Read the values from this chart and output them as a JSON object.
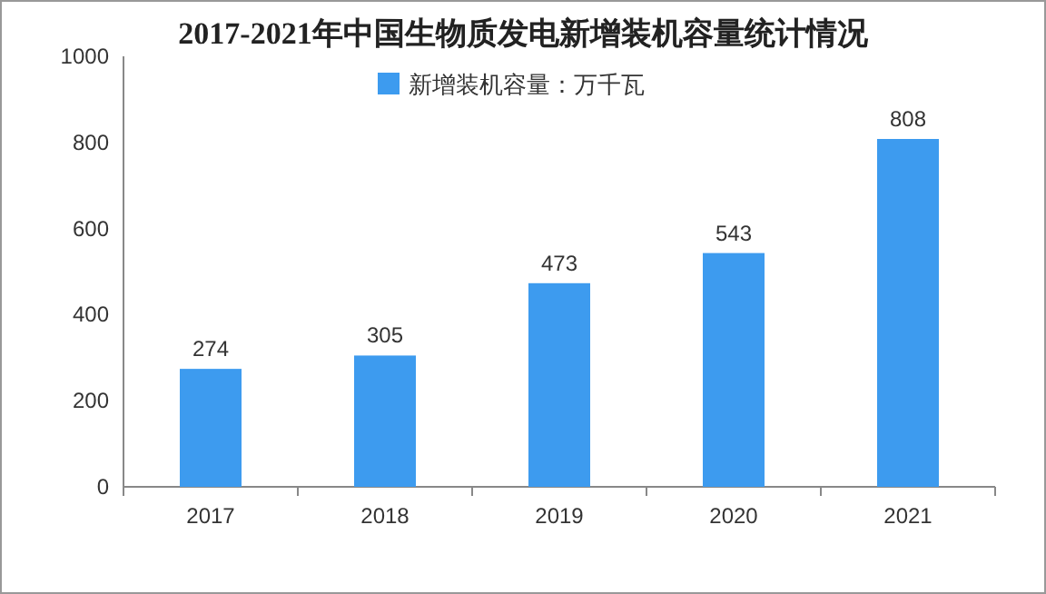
{
  "chart_data": {
    "type": "bar",
    "title": "2017-2021年中国生物质发电新增装机容量统计情况",
    "categories": [
      "2017",
      "2018",
      "2019",
      "2020",
      "2021"
    ],
    "series": [
      {
        "name": "新增装机容量：万千瓦",
        "color": "#3d9bef",
        "values": [
          274,
          305,
          473,
          543,
          808
        ]
      }
    ],
    "ylim": [
      0,
      1000
    ],
    "yticks": [
      0,
      200,
      400,
      600,
      800,
      1000
    ],
    "data_labels": true,
    "legend": "top",
    "grid": false
  }
}
